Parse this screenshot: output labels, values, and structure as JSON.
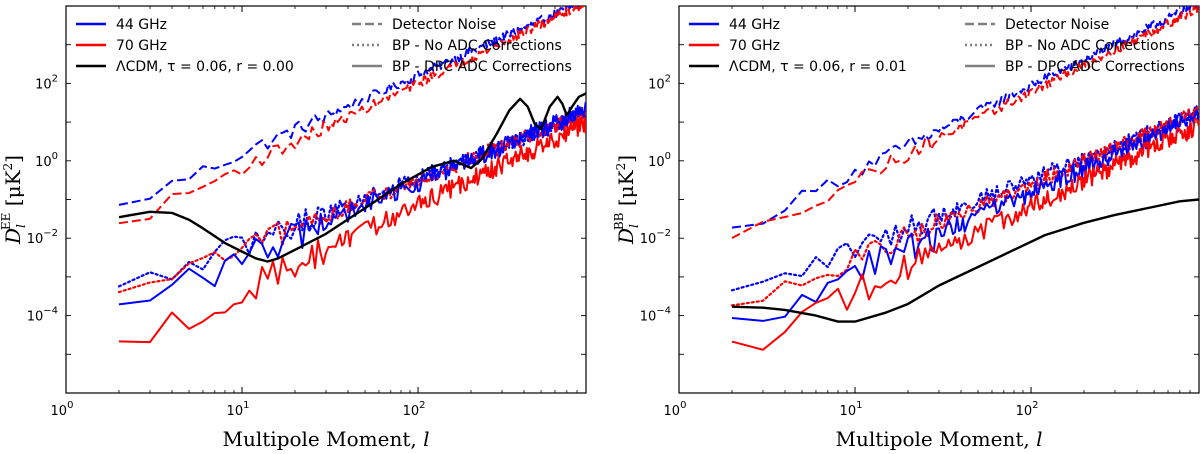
{
  "chart_data": [
    {
      "type": "line",
      "id": "EE",
      "xscale": "log",
      "yscale": "log",
      "xlim": [
        1,
        900
      ],
      "ylim": [
        1e-06,
        10000.0
      ],
      "xlabel": "Multipole Moment, ",
      "xlabel_italic": "l",
      "ylabel_main": "D",
      "ylabel_sub": "l",
      "ylabel_sup": "EE",
      "ylabel_units": " [μK",
      "ylabel_units_sup": "2",
      "ylabel_units_end": "]",
      "x_ticks": [
        {
          "base": "10",
          "exp": "0",
          "value": 1
        },
        {
          "base": "10",
          "exp": "1",
          "value": 10
        },
        {
          "base": "10",
          "exp": "2",
          "value": 100
        }
      ],
      "y_ticks": [
        {
          "base": "10",
          "exp": "−4",
          "value": 0.0001
        },
        {
          "base": "10",
          "exp": "−2",
          "value": 0.01
        },
        {
          "base": "10",
          "exp": "0",
          "value": 1
        },
        {
          "base": "10",
          "exp": "2",
          "value": 100
        }
      ],
      "legend": {
        "col1": [
          {
            "label": "44 GHz",
            "color": "#0000ff",
            "style": "solid"
          },
          {
            "label": "70 GHz",
            "color": "#ff0000",
            "style": "solid"
          },
          {
            "label": "ΛCDM, τ = 0.06, r = 0.00",
            "color": "#000000",
            "style": "solid"
          }
        ],
        "col2": [
          {
            "label": "Detector Noise",
            "color": "#808080",
            "style": "dashed"
          },
          {
            "label": "BP - No ADC Corrections",
            "color": "#808080",
            "style": "dotted"
          },
          {
            "label": "BP - DPC ADC Corrections",
            "color": "#808080",
            "style": "solid"
          }
        ]
      },
      "series": [
        {
          "name": "44 GHz Detector Noise",
          "color": "#0000ff",
          "style": "dashed",
          "amp": 0.06,
          "slope": 2.02,
          "noise": 0.12
        },
        {
          "name": "70 GHz Detector Noise",
          "color": "#ff0000",
          "style": "dashed",
          "amp": 0.02,
          "slope": 2.18,
          "noise": 0.12
        },
        {
          "name": "44 GHz BP - No ADC Corrections",
          "color": "#0000ff",
          "style": "dotted",
          "amp": 0.0004,
          "slope": 1.74,
          "noise": 0.2
        },
        {
          "name": "70 GHz BP - No ADC Corrections",
          "color": "#ff0000",
          "style": "dotted",
          "amp": 0.00028,
          "slope": 1.8,
          "noise": 0.2
        },
        {
          "name": "44 GHz BP - DPC ADC Corrections",
          "color": "#0000ff",
          "style": "solid",
          "amp": 0.00012,
          "slope": 1.97,
          "noise": 0.25
        },
        {
          "name": "70 GHz BP - DPC ADC Corrections",
          "color": "#ff0000",
          "style": "solid",
          "amp": 1.3e-05,
          "slope": 2.2,
          "noise": 0.25
        }
      ],
      "theory": {
        "name": "ΛCDM EE",
        "color": "#000000",
        "points": [
          [
            2,
            0.035
          ],
          [
            3,
            0.048
          ],
          [
            4,
            0.045
          ],
          [
            5,
            0.03
          ],
          [
            6,
            0.018
          ],
          [
            8,
            0.0075
          ],
          [
            10,
            0.0045
          ],
          [
            12,
            0.003
          ],
          [
            14,
            0.0025
          ],
          [
            16,
            0.003
          ],
          [
            20,
            0.005
          ],
          [
            30,
            0.013
          ],
          [
            50,
            0.06
          ],
          [
            80,
            0.25
          ],
          [
            120,
            0.7
          ],
          [
            160,
            1.0
          ],
          [
            200,
            0.65
          ],
          [
            230,
            1.1
          ],
          [
            280,
            5
          ],
          [
            330,
            20
          ],
          [
            380,
            40
          ],
          [
            420,
            25
          ],
          [
            460,
            9
          ],
          [
            500,
            6.5
          ],
          [
            560,
            25
          ],
          [
            620,
            45
          ],
          [
            660,
            30
          ],
          [
            700,
            15
          ],
          [
            750,
            25
          ],
          [
            820,
            45
          ],
          [
            900,
            55
          ]
        ]
      }
    },
    {
      "type": "line",
      "id": "BB",
      "xscale": "log",
      "yscale": "log",
      "xlim": [
        1,
        900
      ],
      "ylim": [
        1e-06,
        10000.0
      ],
      "xlabel": "Multipole Moment, ",
      "xlabel_italic": "l",
      "ylabel_main": "D",
      "ylabel_sub": "l",
      "ylabel_sup": "BB",
      "ylabel_units": " [μK",
      "ylabel_units_sup": "2",
      "ylabel_units_end": "]",
      "x_ticks": [
        {
          "base": "10",
          "exp": "0",
          "value": 1
        },
        {
          "base": "10",
          "exp": "1",
          "value": 10
        },
        {
          "base": "10",
          "exp": "2",
          "value": 100
        }
      ],
      "y_ticks": [
        {
          "base": "10",
          "exp": "−4",
          "value": 0.0001
        },
        {
          "base": "10",
          "exp": "−2",
          "value": 0.01
        },
        {
          "base": "10",
          "exp": "0",
          "value": 1
        },
        {
          "base": "10",
          "exp": "2",
          "value": 100
        }
      ],
      "legend": {
        "col1": [
          {
            "label": "44 GHz",
            "color": "#0000ff",
            "style": "solid"
          },
          {
            "label": "70 GHz",
            "color": "#ff0000",
            "style": "solid"
          },
          {
            "label": "ΛCDM, τ = 0.06, r = 0.01",
            "color": "#000000",
            "style": "solid"
          }
        ],
        "col2": [
          {
            "label": "Detector Noise",
            "color": "#808080",
            "style": "dashed"
          },
          {
            "label": "BP - No ADC Corrections",
            "color": "#808080",
            "style": "dotted"
          },
          {
            "label": "BP - DPC ADC Corrections",
            "color": "#808080",
            "style": "solid"
          }
        ]
      },
      "series": [
        {
          "name": "44 GHz Detector Noise",
          "color": "#0000ff",
          "style": "dashed",
          "amp": 0.015,
          "slope": 2.22,
          "noise": 0.12
        },
        {
          "name": "70 GHz Detector Noise",
          "color": "#ff0000",
          "style": "dashed",
          "amp": 0.008,
          "slope": 2.28,
          "noise": 0.12
        },
        {
          "name": "44 GHz BP - No ADC Corrections",
          "color": "#0000ff",
          "style": "dotted",
          "amp": 0.0003,
          "slope": 1.8,
          "noise": 0.2
        },
        {
          "name": "70 GHz BP - No ADC Corrections",
          "color": "#ff0000",
          "style": "dotted",
          "amp": 0.00012,
          "slope": 1.95,
          "noise": 0.2
        },
        {
          "name": "44 GHz BP - DPC ADC Corrections",
          "color": "#0000ff",
          "style": "solid",
          "amp": 5e-05,
          "slope": 2.05,
          "noise": 0.25
        },
        {
          "name": "70 GHz BP - DPC ADC Corrections",
          "color": "#ff0000",
          "style": "solid",
          "amp": 1.2e-05,
          "slope": 2.2,
          "noise": 0.25
        }
      ],
      "theory": {
        "name": "ΛCDM BB",
        "color": "#000000",
        "points": [
          [
            2,
            0.00017
          ],
          [
            3,
            0.00016
          ],
          [
            4,
            0.00014
          ],
          [
            6,
            0.0001
          ],
          [
            8,
            7e-05
          ],
          [
            10,
            7e-05
          ],
          [
            15,
            0.00012
          ],
          [
            20,
            0.0002
          ],
          [
            30,
            0.0006
          ],
          [
            50,
            0.0018
          ],
          [
            80,
            0.005
          ],
          [
            120,
            0.012
          ],
          [
            200,
            0.025
          ],
          [
            300,
            0.04
          ],
          [
            500,
            0.065
          ],
          [
            700,
            0.09
          ],
          [
            900,
            0.1
          ]
        ]
      }
    }
  ]
}
